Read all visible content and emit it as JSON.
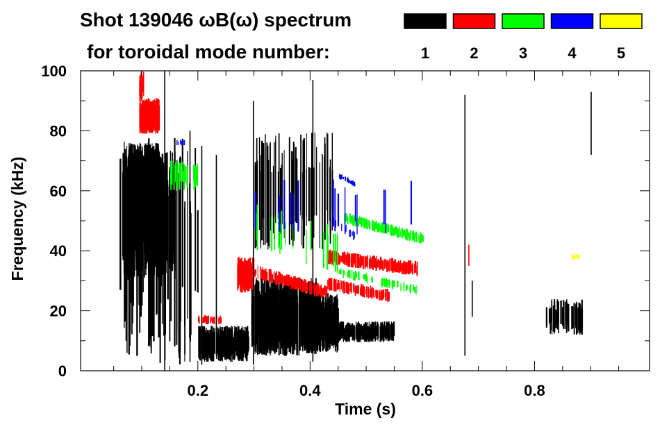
{
  "chart_data": {
    "type": "heatmap",
    "title": "Shot 139046 ωB(ω) spectrum",
    "legend_title": "for toroidal mode number:",
    "legend": [
      {
        "label": "1",
        "color": "#000000"
      },
      {
        "label": "2",
        "color": "#ff0000"
      },
      {
        "label": "3",
        "color": "#00ff00"
      },
      {
        "label": "4",
        "color": "#0000ff"
      },
      {
        "label": "5",
        "color": "#ffff00"
      }
    ],
    "legend_placement": "top-right",
    "xlabel": "Time (s)",
    "ylabel": "Frequency (kHz)",
    "xlim": [
      -0.009,
      1.005
    ],
    "ylim": [
      0,
      100
    ],
    "xticks": [
      "0.2",
      "0.4",
      "0.6",
      "0.8"
    ],
    "xtick_values": [
      0.2,
      0.4,
      0.6,
      0.8
    ],
    "yticks": [
      "0",
      "20",
      "40",
      "60",
      "80",
      "100"
    ],
    "ytick_values": [
      0,
      20,
      40,
      60,
      80,
      100
    ],
    "features": [
      {
        "mode": 1,
        "t": [
          0.065,
          0.16
        ],
        "f": [
          52,
          52
        ],
        "hw": 22,
        "n": 260
      },
      {
        "mode": 1,
        "t": [
          0.07,
          0.13
        ],
        "f": [
          62,
          62
        ],
        "hw": 14,
        "n": 220
      },
      {
        "mode": 1,
        "t": [
          0.06,
          0.2
        ],
        "f": [
          40,
          40
        ],
        "hw": 38,
        "n": 60
      },
      {
        "mode": 1,
        "t": [
          0.2,
          0.29
        ],
        "f": [
          9,
          9
        ],
        "hw": 6,
        "n": 200
      },
      {
        "mode": 1,
        "t": [
          0.295,
          0.41
        ],
        "f": [
          18,
          18
        ],
        "hw": 13,
        "n": 320
      },
      {
        "mode": 1,
        "t": [
          0.39,
          0.45
        ],
        "f": [
          16,
          16
        ],
        "hw": 10,
        "n": 160
      },
      {
        "mode": 1,
        "t": [
          0.45,
          0.55
        ],
        "f": [
          13,
          13
        ],
        "hw": 3.5,
        "n": 180
      },
      {
        "mode": 1,
        "t": [
          0.82,
          0.885
        ],
        "f": [
          18,
          18
        ],
        "hw": 6,
        "n": 60
      },
      {
        "mode": 1,
        "t": [
          0.3,
          0.44
        ],
        "f": [
          60,
          60
        ],
        "hw": 20,
        "n": 70
      },
      {
        "mode": 2,
        "t": [
          0.095,
          0.13
        ],
        "f": [
          85,
          85
        ],
        "hw": 6,
        "n": 90
      },
      {
        "mode": 2,
        "t": [
          0.095,
          0.105
        ],
        "f": [
          95,
          95
        ],
        "hw": 5,
        "n": 15
      },
      {
        "mode": 2,
        "t": [
          0.27,
          0.3
        ],
        "f": [
          32,
          32
        ],
        "hw": 6,
        "n": 80
      },
      {
        "mode": 2,
        "t": [
          0.3,
          0.43
        ],
        "f": [
          33,
          26
        ],
        "hw": 2.5,
        "n": 130
      },
      {
        "mode": 2,
        "t": [
          0.43,
          0.59
        ],
        "f": [
          38,
          34
        ],
        "hw": 2.5,
        "n": 170
      },
      {
        "mode": 2,
        "t": [
          0.43,
          0.54
        ],
        "f": [
          29,
          25
        ],
        "hw": 2.2,
        "n": 110
      },
      {
        "mode": 2,
        "t": [
          0.2,
          0.24
        ],
        "f": [
          17,
          17
        ],
        "hw": 1.5,
        "n": 30
      },
      {
        "mode": 3,
        "t": [
          0.46,
          0.6
        ],
        "f": [
          51,
          44
        ],
        "hw": 2,
        "n": 130
      },
      {
        "mode": 3,
        "t": [
          0.45,
          0.59
        ],
        "f": [
          33,
          27
        ],
        "hw": 1.8,
        "n": 50
      },
      {
        "mode": 3,
        "t": [
          0.15,
          0.2
        ],
        "f": [
          65,
          65
        ],
        "hw": 5,
        "n": 25
      },
      {
        "mode": 3,
        "t": [
          0.3,
          0.45
        ],
        "f": [
          48,
          40
        ],
        "hw": 8,
        "n": 20
      },
      {
        "mode": 4,
        "t": [
          0.45,
          0.48
        ],
        "f": [
          65,
          62
        ],
        "hw": 1,
        "n": 20
      },
      {
        "mode": 4,
        "t": [
          0.44,
          0.48
        ],
        "f": [
          50,
          45
        ],
        "hw": 2,
        "n": 12
      },
      {
        "mode": 4,
        "t": [
          0.3,
          0.6
        ],
        "f": [
          55,
          55
        ],
        "hw": 10,
        "n": 15
      },
      {
        "mode": 4,
        "t": [
          0.16,
          0.18
        ],
        "f": [
          76,
          76
        ],
        "hw": 1,
        "n": 6
      },
      {
        "mode": 5,
        "t": [
          0.865,
          0.885
        ],
        "f": [
          38,
          38
        ],
        "hw": 1,
        "n": 6
      }
    ],
    "lines": [
      {
        "mode": 1,
        "t": 0.14,
        "f": [
          0,
          100
        ]
      },
      {
        "mode": 1,
        "t": 0.185,
        "f": [
          3,
          80
        ]
      },
      {
        "mode": 1,
        "t": 0.206,
        "f": [
          2,
          75
        ]
      },
      {
        "mode": 1,
        "t": 0.232,
        "f": [
          5,
          72
        ]
      },
      {
        "mode": 1,
        "t": 0.298,
        "f": [
          2,
          90
        ]
      },
      {
        "mode": 1,
        "t": 0.404,
        "f": [
          3,
          97
        ]
      },
      {
        "mode": 1,
        "t": 0.675,
        "f": [
          5,
          92
        ]
      },
      {
        "mode": 1,
        "t": 0.688,
        "f": [
          18,
          30
        ]
      },
      {
        "mode": 1,
        "t": 0.9,
        "f": [
          72,
          93
        ]
      },
      {
        "mode": 2,
        "t": 0.682,
        "f": [
          35,
          42
        ]
      }
    ]
  }
}
